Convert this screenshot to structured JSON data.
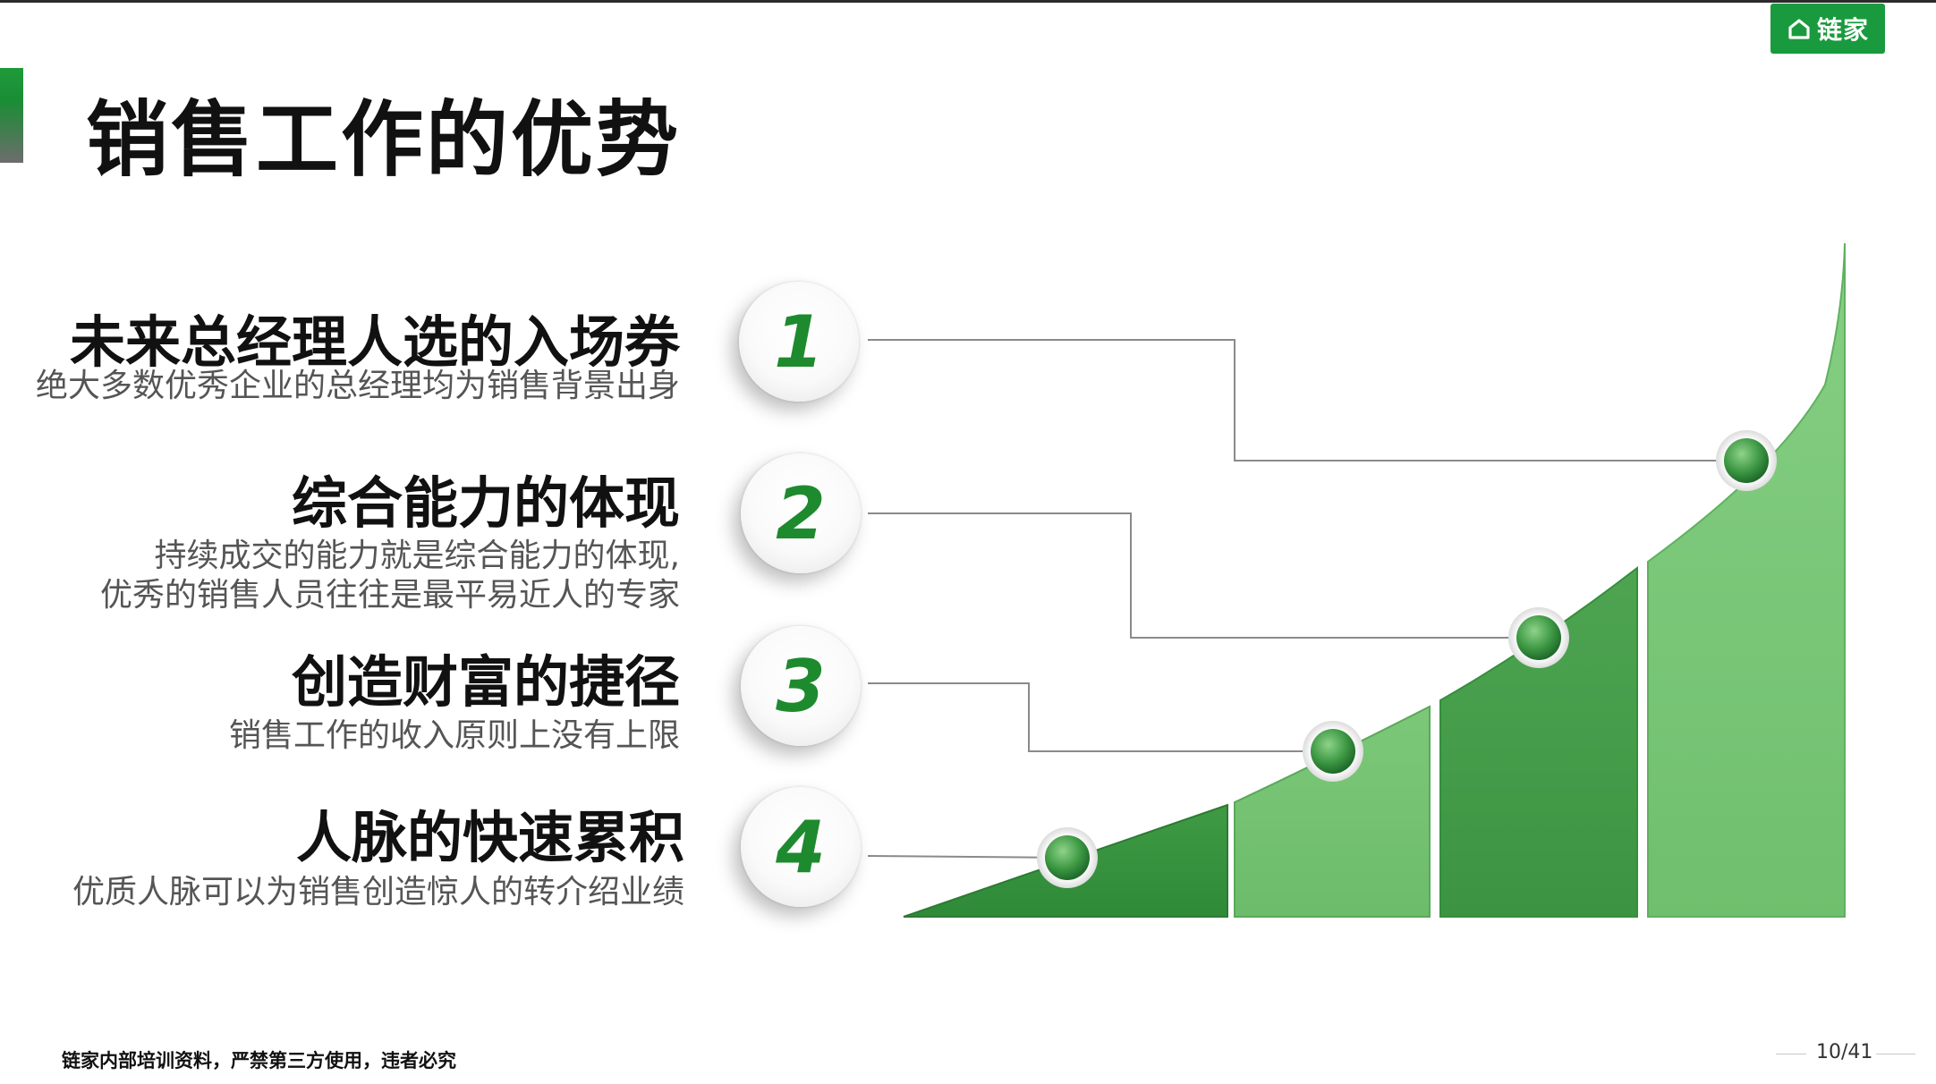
{
  "header": {
    "title": "销售工作的优势",
    "logo_text": "链家",
    "logo_icon": "house-icon",
    "accent_color": "#1a9a3e"
  },
  "items": [
    {
      "number": "1",
      "heading": "未来总经理人选的入场券",
      "desc": [
        "绝大多数优秀企业的总经理均为销售背景出身"
      ]
    },
    {
      "number": "2",
      "heading": "综合能力的体现",
      "desc": [
        "持续成交的能力就是综合能力的体现,",
        "优秀的销售人员往往是最平易近人的专家"
      ]
    },
    {
      "number": "3",
      "heading": "创造财富的捷径",
      "desc": [
        "销售工作的收入原则上没有上限"
      ]
    },
    {
      "number": "4",
      "heading": "人脉的快速累积",
      "desc": [
        "优质人脉可以为销售创造惊人的转介绍业绩"
      ]
    }
  ],
  "footer": {
    "notice": "链家内部培训资料，严禁第三方使用，违者必究",
    "page": "10/41"
  }
}
